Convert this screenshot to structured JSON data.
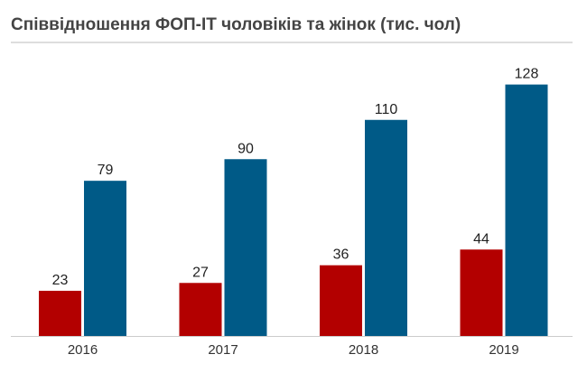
{
  "chart_data": {
    "type": "bar",
    "title": "Співвідношення ФОП-ІТ чоловіків та жінок (тис. чол)",
    "xlabel": "",
    "ylabel": "",
    "categories": [
      "2016",
      "2017",
      "2018",
      "2019"
    ],
    "series": [
      {
        "values": [
          23,
          27,
          36,
          44
        ],
        "color": "#b30000"
      },
      {
        "values": [
          79,
          90,
          110,
          128
        ],
        "color": "#005a87"
      }
    ],
    "ylim": [
      0,
      145
    ],
    "grid": false,
    "legend": "none",
    "data_labels": true
  }
}
